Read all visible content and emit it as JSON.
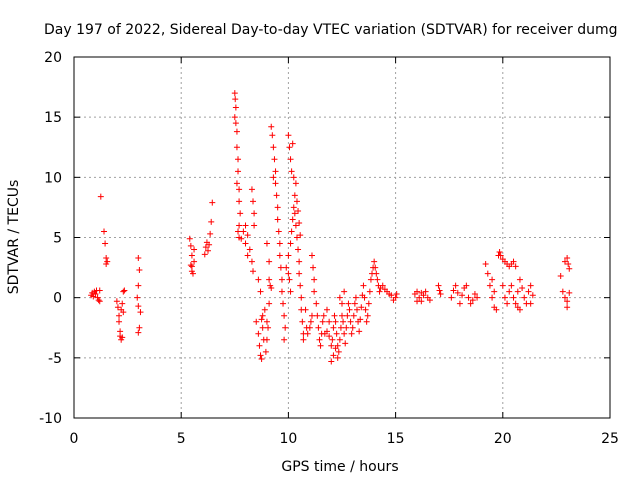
{
  "chart_data": {
    "type": "scatter",
    "title": "Day 197 of 2022, Sidereal Day-to-day VTEC variation (SDTVAR) for receiver dumg",
    "xlabel": "GPS time / hours",
    "ylabel": "SDTVAR / TECUs",
    "xlim": [
      0,
      25
    ],
    "ylim": [
      -10,
      20
    ],
    "x_ticks": [
      0,
      5,
      10,
      15,
      20,
      25
    ],
    "y_ticks": [
      -10,
      -5,
      0,
      5,
      10,
      15,
      20
    ],
    "x_tick_labels": [
      "0",
      "5",
      "10",
      "15",
      "20",
      "25"
    ],
    "y_tick_labels": [
      "-10",
      "-5",
      "0",
      "5",
      "10",
      "15",
      "20"
    ],
    "grid": true,
    "marker": "+",
    "marker_color": "#ff0000",
    "series": [
      {
        "name": "SDTVAR",
        "points": [
          [
            0.8,
            0.2
          ],
          [
            0.85,
            0.4
          ],
          [
            0.9,
            0.1
          ],
          [
            0.95,
            0.5
          ],
          [
            1.0,
            0.3
          ],
          [
            1.05,
            0.6
          ],
          [
            1.1,
            0.0
          ],
          [
            1.15,
            -0.2
          ],
          [
            1.2,
            -0.3
          ],
          [
            1.25,
            8.4
          ],
          [
            1.2,
            0.6
          ],
          [
            1.4,
            5.5
          ],
          [
            1.45,
            4.5
          ],
          [
            1.5,
            3.3
          ],
          [
            1.5,
            2.8
          ],
          [
            1.55,
            3.0
          ],
          [
            2.0,
            -0.3
          ],
          [
            2.05,
            -0.8
          ],
          [
            2.1,
            -1.5
          ],
          [
            2.1,
            -2.0
          ],
          [
            2.15,
            -2.8
          ],
          [
            2.15,
            -3.2
          ],
          [
            2.2,
            -3.5
          ],
          [
            2.25,
            -3.3
          ],
          [
            2.2,
            -1.0
          ],
          [
            2.3,
            0.5
          ],
          [
            2.35,
            0.6
          ],
          [
            2.25,
            -0.5
          ],
          [
            2.3,
            -1.2
          ],
          [
            3.0,
            3.3
          ],
          [
            3.05,
            2.3
          ],
          [
            3.0,
            1.0
          ],
          [
            2.95,
            0.0
          ],
          [
            3.0,
            -0.7
          ],
          [
            3.05,
            -2.5
          ],
          [
            3.0,
            -2.9
          ],
          [
            3.1,
            -1.2
          ],
          [
            5.4,
            4.9
          ],
          [
            5.45,
            4.3
          ],
          [
            5.5,
            3.5
          ],
          [
            5.45,
            2.7
          ],
          [
            5.5,
            2.2
          ],
          [
            5.55,
            2.0
          ],
          [
            5.5,
            2.6
          ],
          [
            5.6,
            3.0
          ],
          [
            5.6,
            4.0
          ],
          [
            6.1,
            3.6
          ],
          [
            6.15,
            4.2
          ],
          [
            6.2,
            4.6
          ],
          [
            6.25,
            3.9
          ],
          [
            6.3,
            4.4
          ],
          [
            6.35,
            5.3
          ],
          [
            6.4,
            6.3
          ],
          [
            6.45,
            7.9
          ],
          [
            7.5,
            17.0
          ],
          [
            7.52,
            16.5
          ],
          [
            7.55,
            15.8
          ],
          [
            7.5,
            15.0
          ],
          [
            7.55,
            14.5
          ],
          [
            7.6,
            13.8
          ],
          [
            7.6,
            12.5
          ],
          [
            7.65,
            11.5
          ],
          [
            7.65,
            10.5
          ],
          [
            7.6,
            9.5
          ],
          [
            7.7,
            9.0
          ],
          [
            7.7,
            8.0
          ],
          [
            7.75,
            7.0
          ],
          [
            7.7,
            6.0
          ],
          [
            7.65,
            5.5
          ],
          [
            7.7,
            5.0
          ],
          [
            7.8,
            4.9
          ],
          [
            7.9,
            5.5
          ],
          [
            8.0,
            6.0
          ],
          [
            8.1,
            5.2
          ],
          [
            8.2,
            4.0
          ],
          [
            8.3,
            3.0
          ],
          [
            8.35,
            2.2
          ],
          [
            8.0,
            4.5
          ],
          [
            8.1,
            3.5
          ],
          [
            8.3,
            9.0
          ],
          [
            8.35,
            8.0
          ],
          [
            8.4,
            7.0
          ],
          [
            8.4,
            6.0
          ],
          [
            8.5,
            -2.0
          ],
          [
            8.6,
            -3.0
          ],
          [
            8.65,
            -4.0
          ],
          [
            8.7,
            -4.8
          ],
          [
            8.75,
            -5.1
          ],
          [
            8.8,
            -2.5
          ],
          [
            8.8,
            -1.5
          ],
          [
            8.9,
            -1.0
          ],
          [
            8.85,
            -3.5
          ],
          [
            8.95,
            -4.5
          ],
          [
            9.0,
            -2.0
          ],
          [
            8.6,
            1.5
          ],
          [
            8.7,
            0.5
          ],
          [
            8.75,
            -1.8
          ],
          [
            9.0,
            4.5
          ],
          [
            9.1,
            3.0
          ],
          [
            9.1,
            1.5
          ],
          [
            9.15,
            1.0
          ],
          [
            9.2,
            0.8
          ],
          [
            9.1,
            -0.5
          ],
          [
            9.05,
            -2.5
          ],
          [
            9.0,
            -3.5
          ],
          [
            9.2,
            14.2
          ],
          [
            9.25,
            13.5
          ],
          [
            9.3,
            12.5
          ],
          [
            9.35,
            11.5
          ],
          [
            9.4,
            10.5
          ],
          [
            9.3,
            10.0
          ],
          [
            9.4,
            9.5
          ],
          [
            9.45,
            8.5
          ],
          [
            9.5,
            7.5
          ],
          [
            9.5,
            6.5
          ],
          [
            9.55,
            5.5
          ],
          [
            9.6,
            4.5
          ],
          [
            9.6,
            3.5
          ],
          [
            9.65,
            2.5
          ],
          [
            9.7,
            1.5
          ],
          [
            9.7,
            0.5
          ],
          [
            9.75,
            -0.5
          ],
          [
            9.8,
            -1.5
          ],
          [
            9.85,
            -2.5
          ],
          [
            9.8,
            -3.5
          ],
          [
            9.9,
            2.5
          ],
          [
            10.0,
            3.5
          ],
          [
            10.0,
            2.0
          ],
          [
            10.05,
            1.5
          ],
          [
            10.1,
            0.5
          ],
          [
            10.1,
            4.5
          ],
          [
            10.15,
            5.5
          ],
          [
            10.2,
            6.5
          ],
          [
            10.25,
            7.5
          ],
          [
            10.3,
            8.5
          ],
          [
            10.35,
            9.5
          ],
          [
            10.0,
            13.5
          ],
          [
            10.05,
            12.5
          ],
          [
            10.1,
            11.5
          ],
          [
            10.15,
            10.5
          ],
          [
            10.2,
            12.8
          ],
          [
            10.25,
            10.0
          ],
          [
            10.3,
            7.0
          ],
          [
            10.35,
            6.0
          ],
          [
            10.4,
            5.0
          ],
          [
            10.45,
            4.0
          ],
          [
            10.5,
            3.0
          ],
          [
            10.5,
            2.0
          ],
          [
            10.55,
            1.0
          ],
          [
            10.6,
            0.0
          ],
          [
            10.6,
            -1.0
          ],
          [
            10.65,
            -2.0
          ],
          [
            10.7,
            -3.0
          ],
          [
            10.7,
            -3.5
          ],
          [
            10.4,
            8.0
          ],
          [
            10.45,
            7.2
          ],
          [
            10.5,
            6.2
          ],
          [
            10.55,
            5.2
          ],
          [
            10.8,
            -1.0
          ],
          [
            10.85,
            -2.5
          ],
          [
            10.9,
            -3.0
          ],
          [
            11.0,
            -2.5
          ],
          [
            11.05,
            -2.0
          ],
          [
            11.1,
            -1.5
          ],
          [
            11.1,
            3.5
          ],
          [
            11.15,
            2.5
          ],
          [
            11.2,
            1.5
          ],
          [
            11.2,
            0.5
          ],
          [
            11.3,
            -0.5
          ],
          [
            11.35,
            -1.5
          ],
          [
            11.4,
            -2.5
          ],
          [
            11.45,
            -3.5
          ],
          [
            11.5,
            -4.0
          ],
          [
            11.55,
            -3.0
          ],
          [
            11.6,
            -2.0
          ],
          [
            11.65,
            -1.5
          ],
          [
            11.7,
            -3.0
          ],
          [
            11.8,
            -2.8
          ],
          [
            11.9,
            -3.2
          ],
          [
            12.0,
            -4.0
          ],
          [
            12.05,
            -3.5
          ],
          [
            12.1,
            -2.5
          ],
          [
            12.15,
            -1.5
          ],
          [
            12.2,
            -2.0
          ],
          [
            12.25,
            -3.0
          ],
          [
            12.3,
            -4.0
          ],
          [
            12.3,
            -5.0
          ],
          [
            12.35,
            -4.5
          ],
          [
            12.4,
            -3.5
          ],
          [
            12.45,
            -2.5
          ],
          [
            12.5,
            -1.5
          ],
          [
            12.55,
            -2.0
          ],
          [
            12.6,
            -3.0
          ],
          [
            12.65,
            -3.8
          ],
          [
            12.7,
            -2.5
          ],
          [
            12.75,
            -1.5
          ],
          [
            12.8,
            -0.5
          ],
          [
            12.85,
            -1.0
          ],
          [
            12.9,
            -2.0
          ],
          [
            12.95,
            -3.0
          ],
          [
            13.0,
            -2.5
          ],
          [
            13.05,
            -1.5
          ],
          [
            13.1,
            -0.5
          ],
          [
            13.15,
            0.0
          ],
          [
            13.2,
            -1.0
          ],
          [
            13.25,
            -2.0
          ],
          [
            13.3,
            -2.8
          ],
          [
            13.35,
            -1.8
          ],
          [
            13.4,
            -0.8
          ],
          [
            13.45,
            0.2
          ],
          [
            13.5,
            1.0
          ],
          [
            13.55,
            0.0
          ],
          [
            13.6,
            -1.0
          ],
          [
            13.65,
            -2.0
          ],
          [
            13.7,
            -1.5
          ],
          [
            13.75,
            -0.5
          ],
          [
            13.8,
            0.5
          ],
          [
            13.85,
            1.5
          ],
          [
            13.9,
            2.0
          ],
          [
            13.95,
            2.5
          ],
          [
            14.0,
            3.0
          ],
          [
            14.05,
            2.5
          ],
          [
            14.1,
            2.0
          ],
          [
            14.15,
            1.5
          ],
          [
            14.2,
            1.0
          ],
          [
            14.25,
            0.5
          ],
          [
            14.3,
            0.8
          ],
          [
            14.4,
            1.0
          ],
          [
            14.5,
            0.7
          ],
          [
            14.6,
            0.5
          ],
          [
            14.7,
            0.3
          ],
          [
            14.8,
            0.2
          ],
          [
            14.9,
            -0.2
          ],
          [
            15.0,
            0.0
          ],
          [
            15.05,
            0.3
          ],
          [
            12.0,
            -5.3
          ],
          [
            12.1,
            -4.8
          ],
          [
            12.2,
            -4.2
          ],
          [
            11.9,
            -2.0
          ],
          [
            11.8,
            -1.0
          ],
          [
            12.4,
            0.0
          ],
          [
            12.5,
            -0.5
          ],
          [
            12.6,
            0.5
          ],
          [
            15.9,
            0.3
          ],
          [
            16.0,
            0.5
          ],
          [
            16.1,
            0.0
          ],
          [
            16.2,
            -0.3
          ],
          [
            16.3,
            0.2
          ],
          [
            16.4,
            0.5
          ],
          [
            16.5,
            0.0
          ],
          [
            16.6,
            -0.2
          ],
          [
            16.0,
            -0.3
          ],
          [
            16.2,
            0.4
          ],
          [
            17.0,
            1.0
          ],
          [
            17.05,
            0.6
          ],
          [
            17.1,
            0.3
          ],
          [
            17.6,
            0.0
          ],
          [
            17.7,
            0.6
          ],
          [
            17.8,
            1.0
          ],
          [
            17.9,
            0.4
          ],
          [
            18.0,
            -0.5
          ],
          [
            18.1,
            0.2
          ],
          [
            18.2,
            0.8
          ],
          [
            18.3,
            1.0
          ],
          [
            18.4,
            0.0
          ],
          [
            18.5,
            -0.5
          ],
          [
            18.6,
            -0.2
          ],
          [
            18.7,
            0.3
          ],
          [
            18.8,
            0.0
          ],
          [
            19.2,
            2.8
          ],
          [
            19.3,
            2.0
          ],
          [
            19.4,
            1.0
          ],
          [
            19.5,
            0.0
          ],
          [
            19.6,
            -0.8
          ],
          [
            19.7,
            -1.0
          ],
          [
            19.6,
            0.5
          ],
          [
            19.5,
            1.5
          ],
          [
            19.8,
            3.5
          ],
          [
            19.85,
            3.8
          ],
          [
            19.9,
            3.5
          ],
          [
            20.0,
            3.2
          ],
          [
            20.1,
            3.0
          ],
          [
            20.2,
            2.8
          ],
          [
            20.3,
            2.6
          ],
          [
            20.4,
            2.8
          ],
          [
            20.5,
            3.0
          ],
          [
            20.6,
            2.6
          ],
          [
            20.0,
            1.0
          ],
          [
            20.1,
            0.0
          ],
          [
            20.2,
            -0.5
          ],
          [
            20.3,
            0.5
          ],
          [
            20.4,
            1.0
          ],
          [
            20.5,
            0.0
          ],
          [
            20.6,
            -0.5
          ],
          [
            20.7,
            0.5
          ],
          [
            20.8,
            1.5
          ],
          [
            20.9,
            0.8
          ],
          [
            21.0,
            0.0
          ],
          [
            21.1,
            -0.5
          ],
          [
            21.2,
            0.5
          ],
          [
            21.3,
            1.0
          ],
          [
            21.4,
            0.2
          ],
          [
            20.8,
            -1.0
          ],
          [
            20.7,
            -0.8
          ],
          [
            21.3,
            -0.5
          ],
          [
            22.7,
            1.8
          ],
          [
            22.8,
            0.5
          ],
          [
            22.9,
            0.0
          ],
          [
            23.0,
            -0.3
          ],
          [
            23.1,
            0.4
          ],
          [
            22.9,
            3.0
          ],
          [
            23.0,
            3.3
          ],
          [
            23.05,
            2.8
          ],
          [
            23.1,
            2.4
          ],
          [
            23.0,
            -0.8
          ]
        ]
      }
    ]
  }
}
